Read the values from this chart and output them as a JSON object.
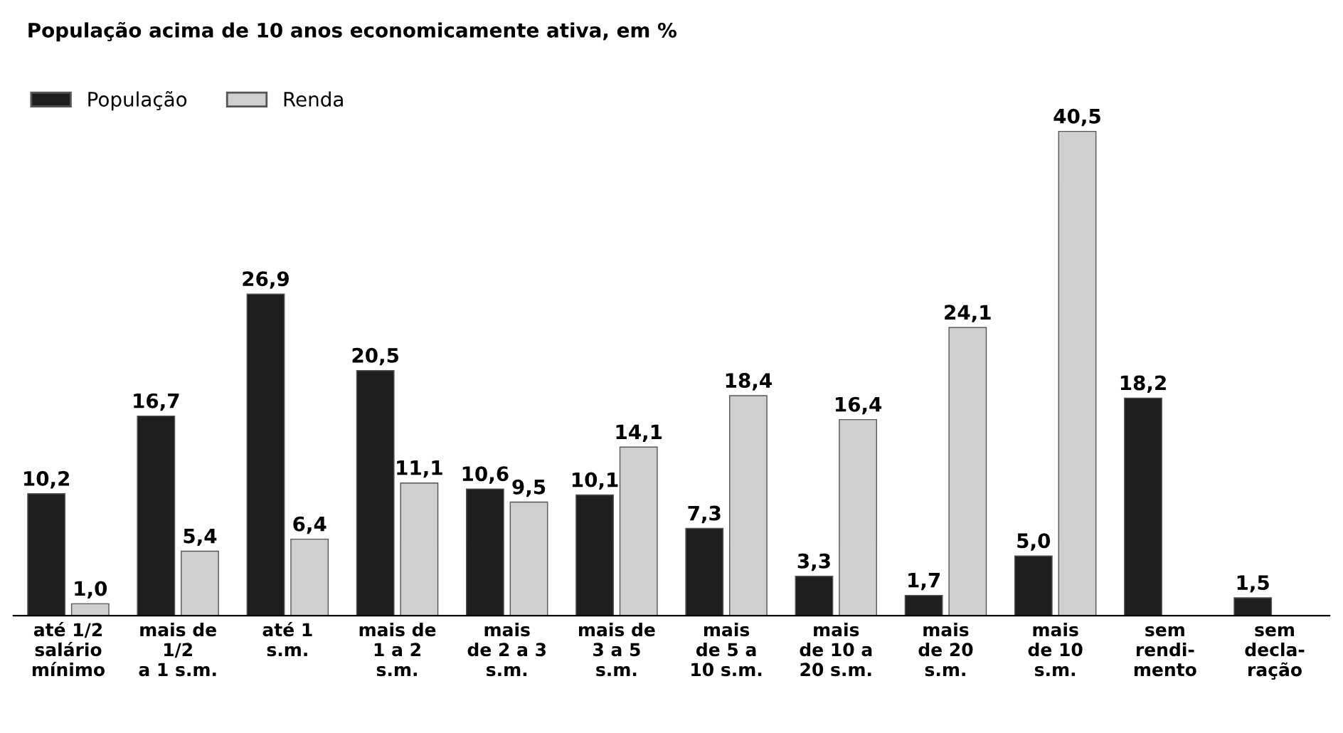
{
  "chart_data": {
    "type": "bar",
    "title": "População acima de 10 anos economicamente ativa, em %",
    "categories": [
      "até 1/2\nsalário\nmínimo",
      "mais de\n1/2\na 1 s.m.",
      "até 1\ns.m.",
      "mais de\n1 a 2\ns.m.",
      "mais\nde 2 a 3\ns.m.",
      "mais de\n3 a 5\ns.m.",
      "mais\nde 5 a\n10 s.m.",
      "mais\nde 10 a\n20 s.m.",
      "mais\nde 20\ns.m.",
      "mais\nde 10\ns.m.",
      "sem\nrendi-\nmento",
      "sem\ndecla-\nração"
    ],
    "series": [
      {
        "name": "População",
        "color": "#1e1e1e",
        "values": [
          10.2,
          16.7,
          26.9,
          20.5,
          10.6,
          10.1,
          7.3,
          3.3,
          1.7,
          5.0,
          18.2,
          1.5
        ],
        "value_labels": [
          "10,2",
          "16,7",
          "26,9",
          "20,5",
          "10,6",
          "10,1",
          "7,3",
          "3,3",
          "1,7",
          "5,0",
          "18,2",
          "1,5"
        ]
      },
      {
        "name": "Renda",
        "color": "#cfcfcf",
        "values": [
          1.0,
          5.4,
          6.4,
          11.1,
          9.5,
          14.1,
          18.4,
          16.4,
          24.1,
          40.5,
          null,
          null
        ],
        "value_labels": [
          "1,0",
          "5,4",
          "6,4",
          "11,1",
          "9,5",
          "14,1",
          "18,4",
          "16,4",
          "24,1",
          "40,5",
          null,
          null
        ]
      }
    ],
    "legend": "top left",
    "grid": false
  }
}
